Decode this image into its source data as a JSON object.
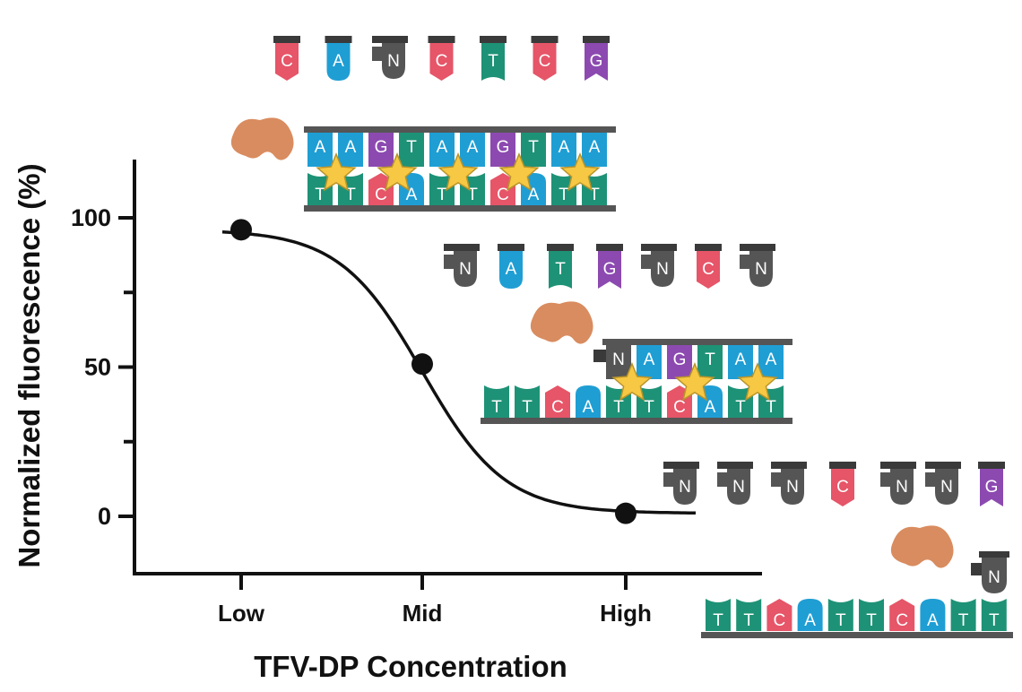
{
  "chart_data": {
    "type": "line",
    "title": "",
    "xlabel": "TFV-DP Concentration",
    "ylabel": "Normalized fluorescence (%)",
    "categories": [
      "Low",
      "Mid",
      "High"
    ],
    "ylim": [
      -20,
      120
    ],
    "yticks": [
      0,
      50,
      100
    ],
    "series": [
      {
        "name": "",
        "values": [
          96,
          51,
          1
        ]
      }
    ],
    "fit_curve": "sigmoid",
    "grid": false,
    "legend": "none"
  },
  "colors": {
    "axis": "#111111",
    "curve": "#111111",
    "marker": "#111111",
    "A": "#1f9ed4",
    "T": "#1e9276",
    "C": "#e65568",
    "G": "#8c4ab0",
    "N": "#555555",
    "enzyme": "#d98c5f",
    "star": "#f6c843"
  },
  "illustration": {
    "panel_low": {
      "free_bases": [
        "C",
        "A",
        "N",
        "C",
        "T",
        "C",
        "G"
      ],
      "duplex_top": [
        "A",
        "A",
        "G",
        "T",
        "A",
        "A",
        "G",
        "T",
        "A",
        "A"
      ],
      "duplex_bottom": [
        "T",
        "T",
        "C",
        "A",
        "T",
        "T",
        "C",
        "A",
        "T",
        "T"
      ],
      "stars": 5
    },
    "panel_mid": {
      "free_bases": [
        "N",
        "A",
        "T",
        "G",
        "N",
        "C",
        "N"
      ],
      "duplex_top": [
        "N",
        "A",
        "G",
        "T",
        "A",
        "A"
      ],
      "duplex_bottom": [
        "T",
        "T",
        "C",
        "A",
        "T",
        "T",
        "C",
        "A",
        "T",
        "T"
      ],
      "stars": 3
    },
    "panel_high": {
      "free_bases": [
        "N",
        "N",
        "N",
        "C",
        "N",
        "N",
        "G"
      ],
      "duplex_top": [
        "N"
      ],
      "duplex_bottom": [
        "T",
        "T",
        "C",
        "A",
        "T",
        "T",
        "C",
        "A",
        "T",
        "T"
      ],
      "stars": 0
    }
  }
}
